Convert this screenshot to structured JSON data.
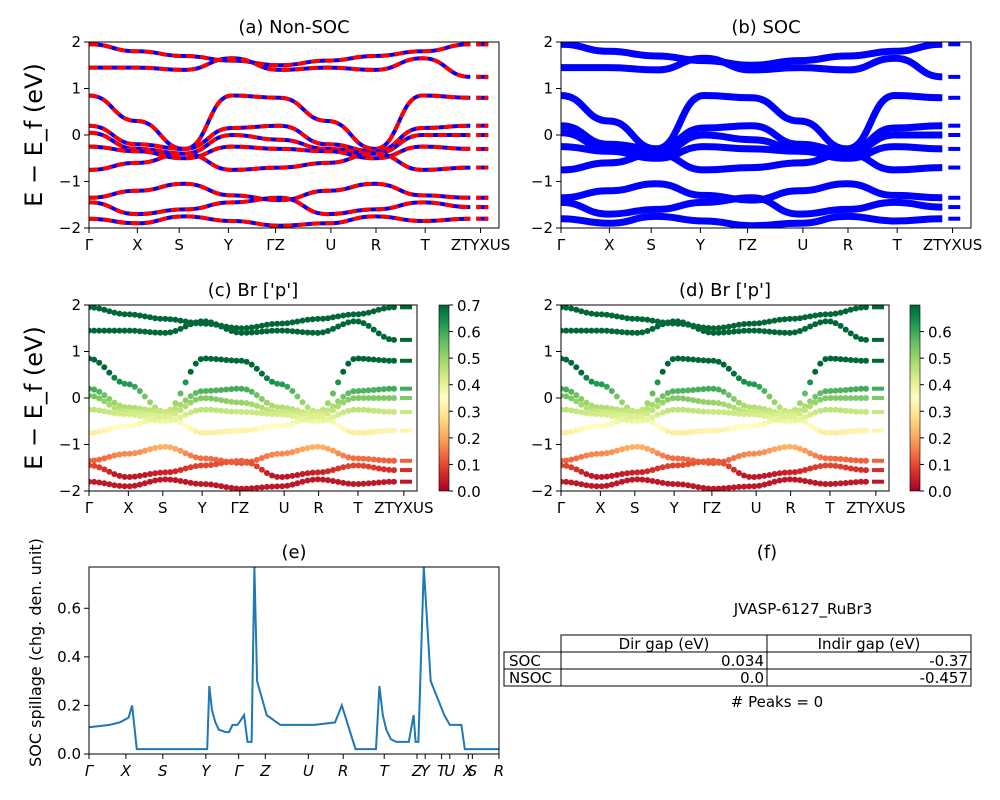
{
  "chart_data": [
    {
      "type": "line",
      "title": "(a) Non-SOC",
      "ylabel": "E − E_f (eV)",
      "ylim": [
        -2,
        2
      ],
      "yticks": [
        "−2",
        "−1",
        "0",
        "1",
        "2"
      ],
      "kpath_labels": [
        "Γ",
        "X",
        "S",
        "Y",
        "ΓZ",
        "U",
        "R",
        "T",
        "ZTYXUS"
      ],
      "series": [
        {
          "color": "#0000ff",
          "values": "bands"
        },
        {
          "color": "#ff0000",
          "dashed": true,
          "values": "bands"
        }
      ],
      "bands": {
        "x": [
          0,
          0.5,
          1.0,
          1.5,
          2.0,
          2.5,
          3.0,
          3.5,
          4.0
        ],
        "lines": [
          [
            1.95,
            1.8,
            1.7,
            1.6,
            1.5,
            1.6,
            1.7,
            1.8,
            1.95
          ],
          [
            1.45,
            1.45,
            1.4,
            1.65,
            1.4,
            1.45,
            1.4,
            1.65,
            1.25
          ],
          [
            0.85,
            0.3,
            -0.3,
            0.85,
            0.8,
            0.3,
            -0.3,
            0.85,
            0.8
          ],
          [
            0.2,
            -0.2,
            -0.3,
            0.15,
            0.2,
            -0.2,
            -0.35,
            0.15,
            0.2
          ],
          [
            0.05,
            -0.3,
            -0.4,
            0.0,
            -0.1,
            -0.3,
            -0.4,
            0.0,
            0.0
          ],
          [
            -0.25,
            -0.35,
            -0.5,
            -0.25,
            -0.3,
            -0.35,
            -0.5,
            -0.25,
            -0.3
          ],
          [
            -0.75,
            -0.6,
            -0.4,
            -0.75,
            -0.7,
            -0.6,
            -0.4,
            -0.75,
            -0.7
          ],
          [
            -1.35,
            -1.2,
            -1.05,
            -1.3,
            -1.4,
            -1.2,
            -1.05,
            -1.3,
            -1.35
          ],
          [
            -1.45,
            -1.7,
            -1.6,
            -1.45,
            -1.35,
            -1.7,
            -1.6,
            -1.45,
            -1.55
          ],
          [
            -1.8,
            -1.9,
            -1.75,
            -1.85,
            -1.95,
            -1.9,
            -1.75,
            -1.85,
            -1.8
          ]
        ]
      }
    },
    {
      "type": "line",
      "title": "(b) SOC",
      "ylim": [
        -2,
        2
      ],
      "yticks": [
        "−2",
        "−1",
        "0",
        "1",
        "2"
      ],
      "kpath_labels": [
        "Γ",
        "X",
        "S",
        "Y",
        "ΓZ",
        "U",
        "R",
        "T",
        "ZTYXUS"
      ],
      "series": [
        {
          "color": "#0000ff",
          "values": "bands",
          "thick": true
        }
      ]
    },
    {
      "type": "scatter",
      "title": "(c)  Br ['p']",
      "ylabel": "E − E_f (eV)",
      "ylim": [
        -2,
        2
      ],
      "yticks": [
        "−2",
        "−1",
        "0",
        "1",
        "2"
      ],
      "kpath_labels": [
        "Γ",
        "X",
        "S",
        "Y",
        "ΓZ",
        "U",
        "R",
        "T",
        "ZTYXUS"
      ],
      "colormap": "RdYlGn",
      "colorbar_range": [
        0,
        0.7
      ],
      "colorbar_ticks": [
        "0.0",
        "0.1",
        "0.2",
        "0.3",
        "0.4",
        "0.5",
        "0.6",
        "0.7"
      ],
      "values": "bands"
    },
    {
      "type": "scatter",
      "title": "(d) Br ['p']",
      "ylim": [
        -2,
        2
      ],
      "yticks": [
        "−2",
        "−1",
        "0",
        "1",
        "2"
      ],
      "kpath_labels": [
        "Γ",
        "X",
        "S",
        "Y",
        "ΓZ",
        "U",
        "R",
        "T",
        "ZTYXUS"
      ],
      "colormap": "RdYlGn",
      "colorbar_range": [
        0,
        0.7
      ],
      "colorbar_ticks": [
        "0.0",
        "0.1",
        "0.2",
        "0.3",
        "0.4",
        "0.5",
        "0.6"
      ],
      "values": "bands"
    },
    {
      "type": "line",
      "title": "(e)",
      "ylabel": "SOC spillage (chg. den. unit)",
      "ylim": [
        0,
        0.77
      ],
      "yticks": [
        "0.0",
        "0.2",
        "0.4",
        "0.6"
      ],
      "kpath_labels": [
        "Γ",
        "X",
        "S",
        "Y",
        "Γ",
        "Z",
        "U",
        "R",
        "T",
        "Z",
        "Y",
        "T",
        "U",
        "X",
        "S",
        "R"
      ],
      "x": [
        0,
        0.3,
        0.45,
        0.58,
        0.63,
        0.7,
        1.0,
        1.3,
        1.55,
        1.73,
        1.76,
        1.8,
        1.85,
        1.9,
        2.0,
        2.05,
        2.1,
        2.17,
        2.2,
        2.27,
        2.32,
        2.38,
        2.42,
        2.46,
        2.6,
        2.8,
        3.0,
        3.08,
        3.14,
        3.3,
        3.6,
        3.7,
        3.9,
        3.98,
        4.02,
        4.07,
        4.12,
        4.2,
        4.25,
        4.3,
        4.35,
        4.42,
        4.5,
        4.6,
        4.68,
        4.75,
        4.78,
        4.82,
        4.9,
        5.0,
        5.2,
        5.28,
        5.38,
        5.45,
        5.5,
        5.75,
        6.0
      ],
      "values": [
        0.11,
        0.12,
        0.13,
        0.15,
        0.2,
        0.02,
        0.02,
        0.02,
        0.02,
        0.02,
        0.28,
        0.18,
        0.13,
        0.1,
        0.09,
        0.09,
        0.12,
        0.12,
        0.13,
        0.16,
        0.05,
        0.05,
        0.77,
        0.3,
        0.16,
        0.12,
        0.12,
        0.12,
        0.12,
        0.12,
        0.13,
        0.2,
        0.02,
        0.02,
        0.02,
        0.02,
        0.02,
        0.02,
        0.28,
        0.16,
        0.1,
        0.06,
        0.05,
        0.05,
        0.05,
        0.16,
        0.05,
        0.05,
        0.77,
        0.3,
        0.16,
        0.12,
        0.12,
        0.12,
        0.02,
        0.02,
        0.02
      ],
      "color": "#1f77b4"
    }
  ],
  "panel_f": {
    "title": "(f)",
    "material": "JVASP-6127_RuBr3",
    "headers": [
      "Dir gap (eV)",
      "Indir gap (eV)"
    ],
    "rows": [
      {
        "label": "SOC",
        "dir": "0.034",
        "indir": "-0.37"
      },
      {
        "label": "NSOC",
        "dir": "0.0",
        "indir": "-0.457"
      }
    ],
    "peaks": "# Peaks = 0"
  }
}
